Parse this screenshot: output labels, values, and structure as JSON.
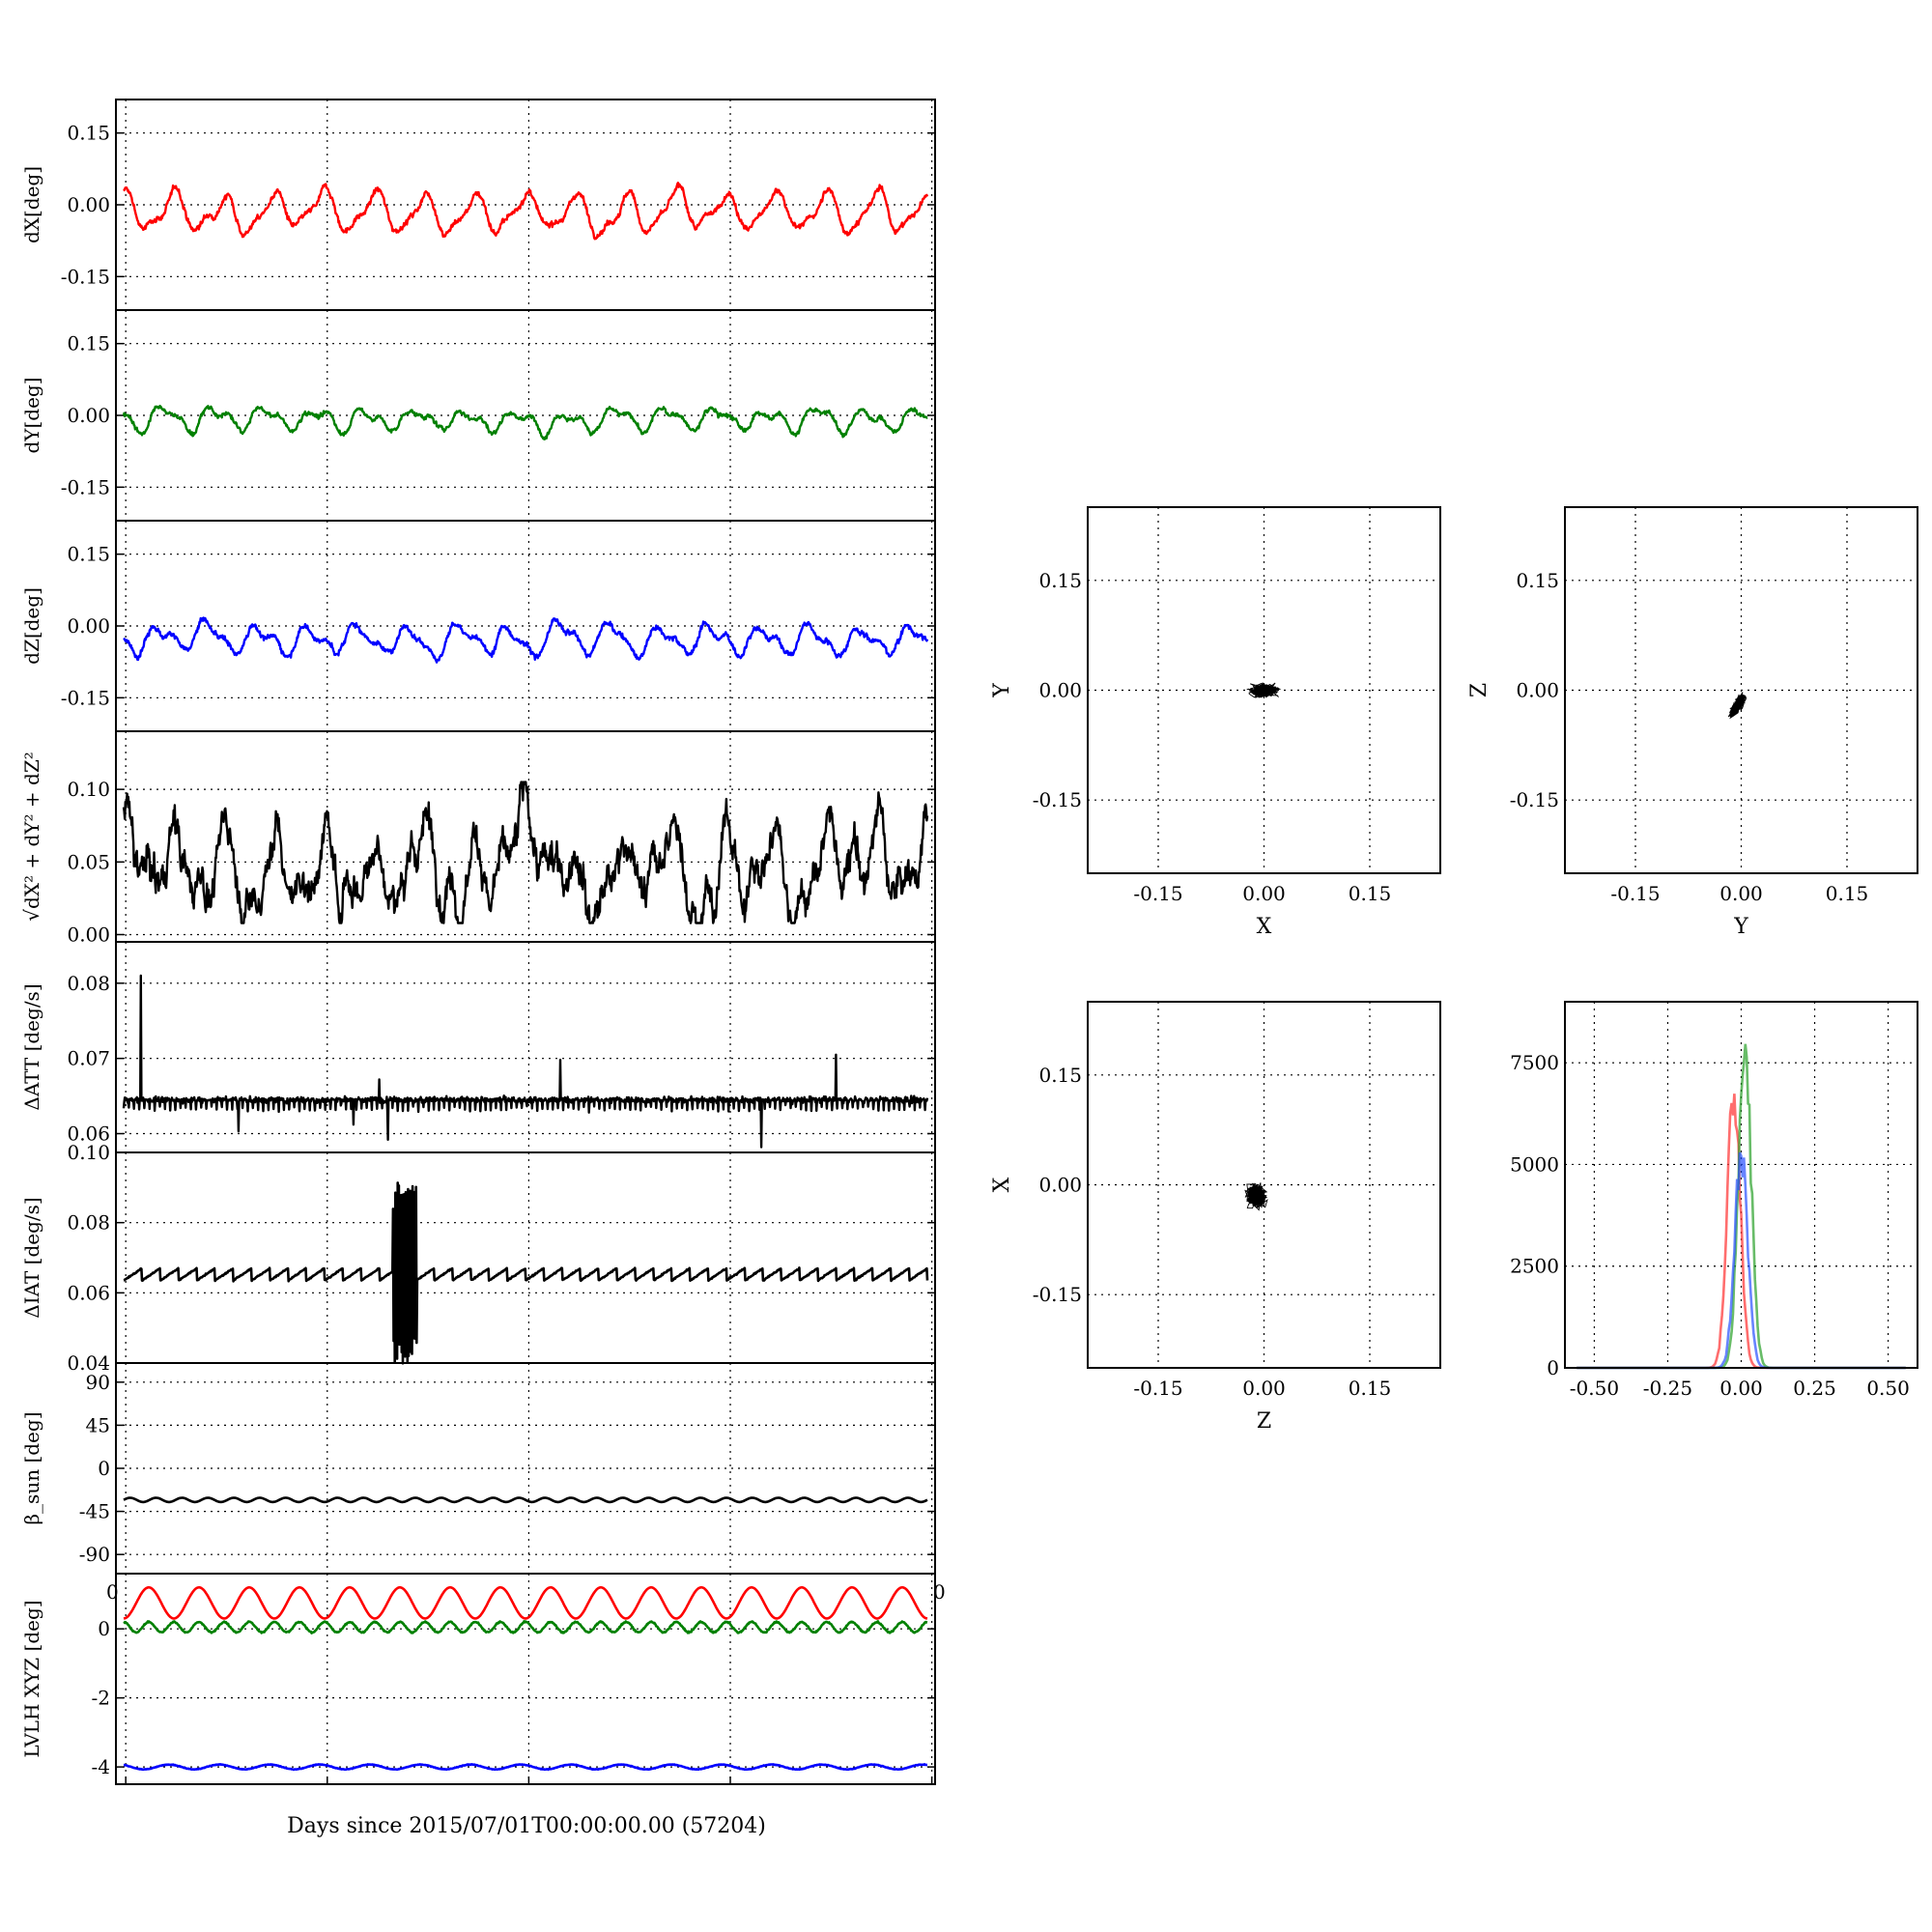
{
  "colors": {
    "red": "#ff0000",
    "green": "#008000",
    "blue": "#0000ff",
    "black": "#000000"
  },
  "chart_data": [
    {
      "id": "dx",
      "type": "line",
      "ylabel": "dX[deg]",
      "ylim": [
        -0.22,
        0.22
      ],
      "yticks": [
        "0.15",
        "0.00",
        "-0.15"
      ],
      "yticks_v": [
        0.15,
        0,
        -0.15
      ],
      "grid": true,
      "series": [
        {
          "color": "red",
          "kind": "dx"
        }
      ]
    },
    {
      "id": "dy",
      "type": "line",
      "ylabel": "dY[deg]",
      "ylim": [
        -0.22,
        0.22
      ],
      "yticks": [
        "0.15",
        "0.00",
        "-0.15"
      ],
      "yticks_v": [
        0.15,
        0,
        -0.15
      ],
      "grid": true,
      "series": [
        {
          "color": "green",
          "kind": "dy"
        }
      ]
    },
    {
      "id": "dz",
      "type": "line",
      "ylabel": "dZ[deg]",
      "ylim": [
        -0.22,
        0.22
      ],
      "yticks": [
        "0.15",
        "0.00",
        "-0.15"
      ],
      "yticks_v": [
        0.15,
        0,
        -0.15
      ],
      "grid": true,
      "series": [
        {
          "color": "blue",
          "kind": "dz"
        }
      ]
    },
    {
      "id": "mag",
      "type": "line",
      "ylabel": "√dX² + dY² + dZ²",
      "ylim": [
        -0.005,
        0.14
      ],
      "yticks": [
        "0.10",
        "0.05",
        "0.00"
      ],
      "yticks_v": [
        0.1,
        0.05,
        0.0
      ],
      "grid": true,
      "series": [
        {
          "color": "black",
          "kind": "mag"
        }
      ]
    },
    {
      "id": "datt",
      "type": "line",
      "ylabel": "ΔATT [deg/s]",
      "ylim": [
        0.0575,
        0.0855
      ],
      "yticks": [
        "0.08",
        "0.07",
        "0.06"
      ],
      "yticks_v": [
        0.08,
        0.07,
        0.06
      ],
      "grid": true,
      "series": [
        {
          "color": "black",
          "kind": "datt"
        }
      ]
    },
    {
      "id": "diat",
      "type": "line",
      "ylabel": "ΔIAT [deg/s]",
      "ylim": [
        0.04,
        0.1
      ],
      "yticks": [
        "0.10",
        "0.08",
        "0.06",
        "0.04"
      ],
      "yticks_v": [
        0.1,
        0.08,
        0.06,
        0.04
      ],
      "grid": true,
      "series": [
        {
          "color": "black",
          "kind": "diat"
        }
      ]
    },
    {
      "id": "beta",
      "type": "line",
      "ylabel": "β_sun [deg]",
      "ylim": [
        -110,
        110
      ],
      "yticks": [
        "90",
        "45",
        "0",
        "-45",
        "-90"
      ],
      "yticks_v": [
        90,
        45,
        0,
        -45,
        -90
      ],
      "grid": true,
      "series": [
        {
          "color": "black",
          "kind": "beta"
        }
      ]
    },
    {
      "id": "lvlh",
      "type": "line",
      "ylabel": "LVLH XYZ [deg]",
      "ylim": [
        -4.5,
        1.6
      ],
      "yticks": [
        "0",
        "-2",
        "-4"
      ],
      "yticks_v": [
        0,
        -2,
        -4
      ],
      "grid": true,
      "series": [
        {
          "color": "red",
          "kind": "lr"
        },
        {
          "color": "green",
          "kind": "lg"
        },
        {
          "color": "blue",
          "kind": "lb"
        }
      ]
    }
  ],
  "shared_x": {
    "xlabel": "Days since 2015/07/01T00:00:00.00 (57204)",
    "edge_tick_left": "0",
    "edge_tick_right": "0"
  },
  "scatter_plots": [
    {
      "id": "xy",
      "type": "scatter",
      "xlabel": "X",
      "ylabel": "Y",
      "xlim": [
        -0.25,
        0.25
      ],
      "ylim": [
        -0.25,
        0.25
      ],
      "ticks": [
        "-0.15",
        "0.00",
        "0.15"
      ],
      "ticks_v": [
        -0.15,
        0,
        0.15
      ],
      "grid": true
    },
    {
      "id": "yz",
      "type": "scatter",
      "xlabel": "Y",
      "ylabel": "Z",
      "xlim": [
        -0.25,
        0.25
      ],
      "ylim": [
        -0.25,
        0.25
      ],
      "ticks": [
        "-0.15",
        "0.00",
        "0.15"
      ],
      "ticks_v": [
        -0.15,
        0,
        0.15
      ],
      "grid": true
    },
    {
      "id": "zx",
      "type": "scatter",
      "xlabel": "Z",
      "ylabel": "X",
      "xlim": [
        -0.25,
        0.25
      ],
      "ylim": [
        -0.25,
        0.25
      ],
      "ticks": [
        "-0.15",
        "0.00",
        "0.15"
      ],
      "ticks_v": [
        -0.15,
        0,
        0.15
      ],
      "grid": true
    }
  ],
  "histogram": {
    "type": "line",
    "xlim": [
      -0.6,
      0.6
    ],
    "ylim": [
      0,
      9000
    ],
    "xticks": [
      "-0.50",
      "-0.25",
      "0.00",
      "0.25",
      "0.50"
    ],
    "xticks_v": [
      -0.5,
      -0.25,
      0,
      0.25,
      0.5
    ],
    "yticks": [
      "7500",
      "5000",
      "2500",
      "0"
    ],
    "yticks_v": [
      7500,
      5000,
      2500,
      0
    ],
    "grid": true,
    "series": [
      {
        "color": "red",
        "peak": 7300,
        "center": -0.025
      },
      {
        "color": "green",
        "peak": 8050,
        "center": 0.012
      },
      {
        "color": "blue",
        "peak": 5600,
        "center": 0.0
      }
    ]
  }
}
